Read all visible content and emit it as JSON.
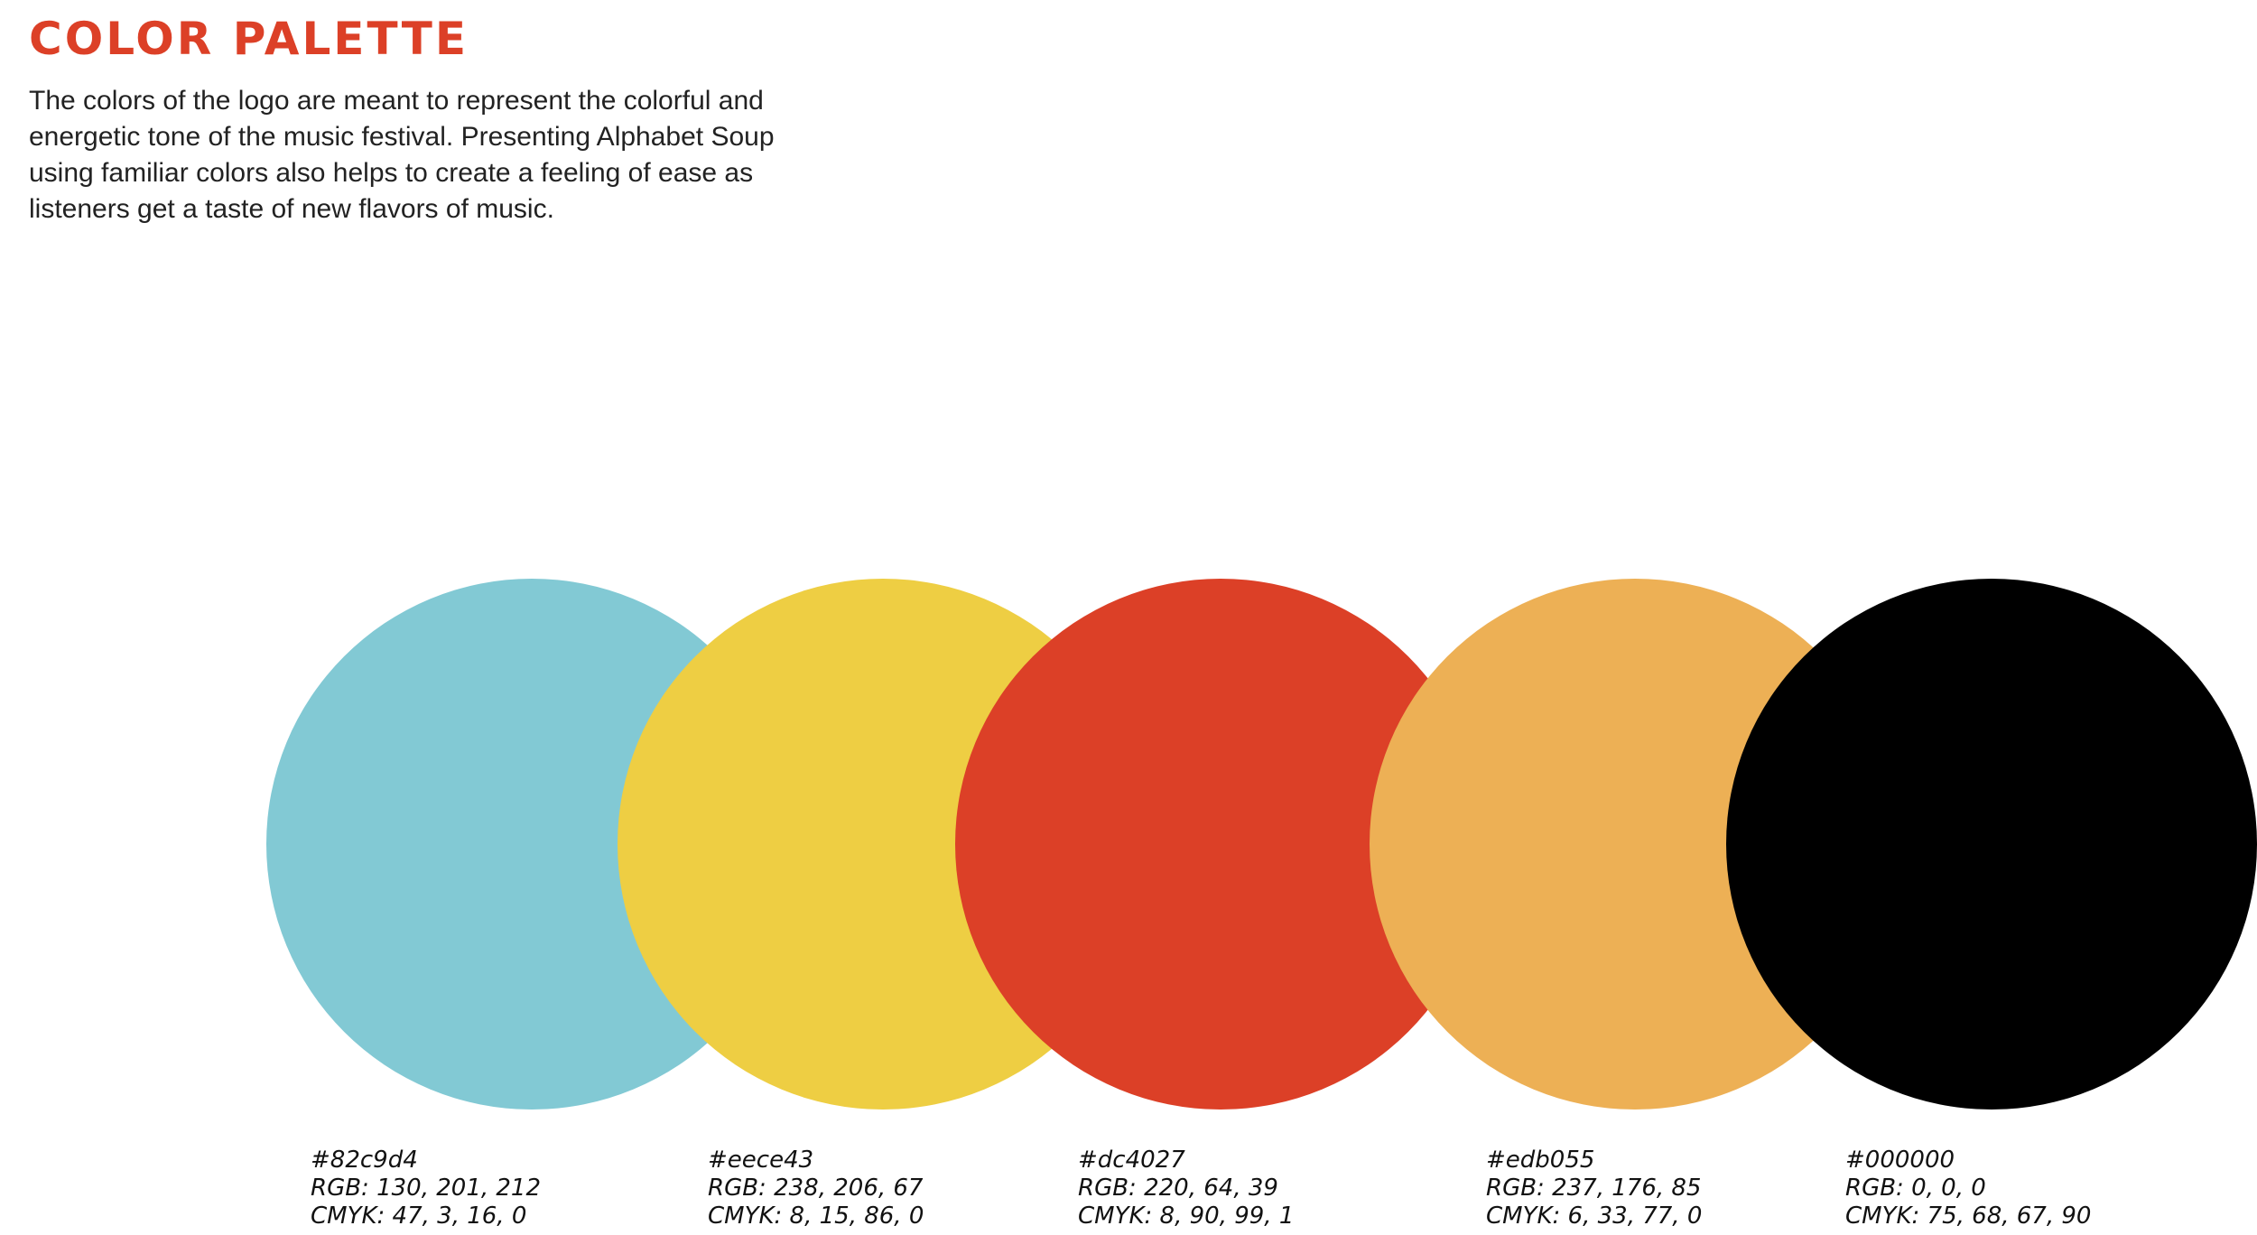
{
  "header": {
    "title": "COLOR PALETTE",
    "title_color": "#dc4027"
  },
  "description": "The colors of the logo are meant to represent the colorful and energetic tone of the music festival. Presenting Alphabet Soup using familiar colors also helps to create a feeling of ease as listeners get a taste of new flavors of music.",
  "swatches": [
    {
      "hex": "#82c9d4",
      "rgb": "RGB: 130, 201, 212",
      "cmyk": "CMYK: 47, 3, 16, 0",
      "color": "#82c9d4"
    },
    {
      "hex": "#eece43",
      "rgb": "RGB: 238, 206, 67",
      "cmyk": "CMYK: 8, 15, 86, 0",
      "color": "#eece43"
    },
    {
      "hex": "#dc4027",
      "rgb": "RGB: 220, 64, 39",
      "cmyk": "CMYK: 8, 90, 99, 1",
      "color": "#dc4027"
    },
    {
      "hex": "#edb055",
      "rgb": "RGB: 237, 176, 85",
      "cmyk": "CMYK: 6, 33, 77, 0",
      "color": "#edb055"
    },
    {
      "hex": "#000000",
      "rgb": "RGB: 0, 0, 0",
      "cmyk": "CMYK: 75, 68, 67, 90",
      "color": "#000000"
    }
  ]
}
